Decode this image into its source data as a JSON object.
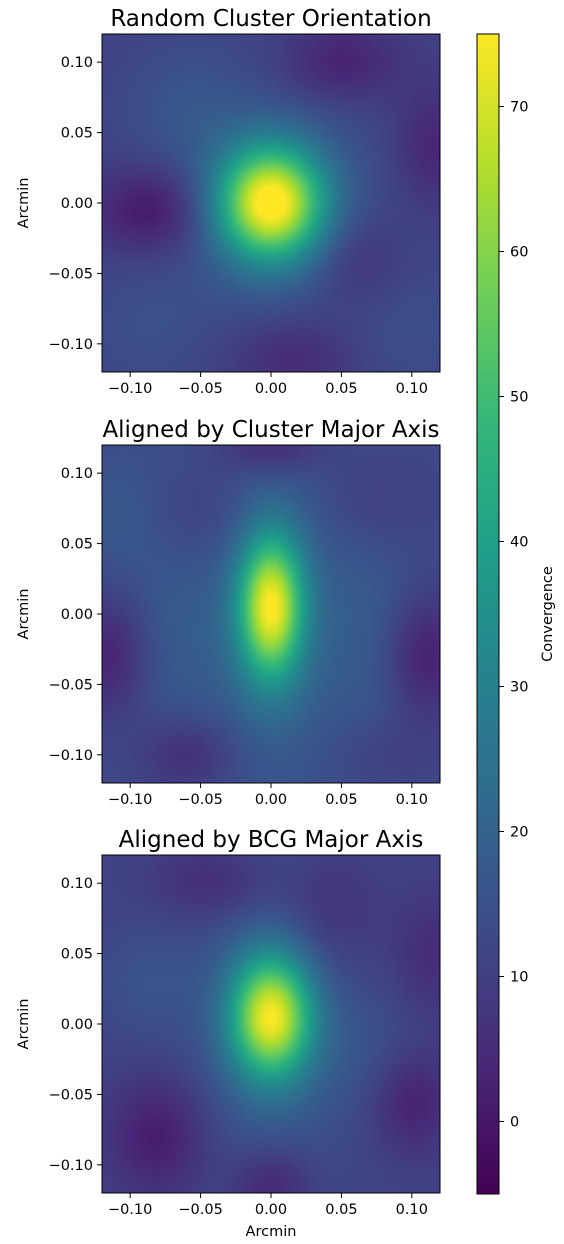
{
  "colormap": {
    "name": "viridis",
    "stops": [
      "#440154",
      "#482878",
      "#3e4989",
      "#31688e",
      "#26828e",
      "#1f9e89",
      "#35b779",
      "#6ece58",
      "#b5de2b",
      "#fde725"
    ]
  },
  "colorbar": {
    "label": "Convergence",
    "vmin": -5,
    "vmax": 75,
    "ticks": [
      0,
      10,
      20,
      30,
      40,
      50,
      60,
      70
    ]
  },
  "chart_data": [
    {
      "type": "heatmap",
      "title": "Random Cluster Orientation",
      "xlabel": "",
      "ylabel": "Arcmin",
      "xlim": [
        -0.12,
        0.12
      ],
      "ylim": [
        -0.12,
        0.12
      ],
      "xticks": [
        -0.1,
        -0.05,
        0.0,
        0.05,
        0.1
      ],
      "yticks": [
        -0.1,
        -0.05,
        0.0,
        0.05,
        0.1
      ],
      "background": 11,
      "blobs": [
        {
          "x": 0.0,
          "y": 0.0,
          "sx": 0.026,
          "sy": 0.028,
          "amp": 63
        },
        {
          "x": 0.0,
          "y": 0.0,
          "sx": 0.06,
          "sy": 0.06,
          "amp": 6
        },
        {
          "x": -0.085,
          "y": -0.005,
          "sx": 0.03,
          "sy": 0.022,
          "amp": -12
        },
        {
          "x": 0.05,
          "y": 0.1,
          "sx": 0.03,
          "sy": 0.02,
          "amp": -9
        },
        {
          "x": 0.015,
          "y": -0.11,
          "sx": 0.03,
          "sy": 0.02,
          "amp": -7
        },
        {
          "x": 0.115,
          "y": 0.04,
          "sx": 0.02,
          "sy": 0.03,
          "amp": -8
        },
        {
          "x": 0.06,
          "y": -0.04,
          "sx": 0.025,
          "sy": 0.025,
          "amp": -6
        },
        {
          "x": -0.06,
          "y": 0.07,
          "sx": 0.03,
          "sy": 0.03,
          "amp": 4
        },
        {
          "x": 0.1,
          "y": -0.09,
          "sx": 0.03,
          "sy": 0.03,
          "amp": 3
        },
        {
          "x": -0.09,
          "y": -0.09,
          "sx": 0.03,
          "sy": 0.03,
          "amp": 3
        }
      ]
    },
    {
      "type": "heatmap",
      "title": "Aligned by Cluster Major Axis",
      "xlabel": "",
      "ylabel": "Arcmin",
      "xlim": [
        -0.12,
        0.12
      ],
      "ylim": [
        -0.12,
        0.12
      ],
      "xticks": [
        -0.1,
        -0.05,
        0.0,
        0.05,
        0.1
      ],
      "yticks": [
        -0.1,
        -0.05,
        0.0,
        0.05,
        0.1
      ],
      "background": 13,
      "blobs": [
        {
          "x": 0.0,
          "y": 0.005,
          "sx": 0.016,
          "sy": 0.035,
          "amp": 55
        },
        {
          "x": 0.0,
          "y": 0.0,
          "sx": 0.035,
          "sy": 0.09,
          "amp": 8
        },
        {
          "x": -0.07,
          "y": 0.0,
          "sx": 0.025,
          "sy": 0.08,
          "amp": 4
        },
        {
          "x": 0.07,
          "y": 0.0,
          "sx": 0.025,
          "sy": 0.08,
          "amp": 4
        },
        {
          "x": -0.115,
          "y": -0.03,
          "sx": 0.02,
          "sy": 0.03,
          "amp": -10
        },
        {
          "x": 0.11,
          "y": -0.03,
          "sx": 0.02,
          "sy": 0.03,
          "amp": -11
        },
        {
          "x": 0.0,
          "y": 0.12,
          "sx": 0.025,
          "sy": 0.015,
          "amp": -10
        },
        {
          "x": -0.06,
          "y": -0.1,
          "sx": 0.025,
          "sy": 0.02,
          "amp": -9
        },
        {
          "x": -0.05,
          "y": 0.07,
          "sx": 0.03,
          "sy": 0.03,
          "amp": -5
        },
        {
          "x": 0.07,
          "y": 0.08,
          "sx": 0.03,
          "sy": 0.03,
          "amp": -5
        },
        {
          "x": 0.08,
          "y": -0.1,
          "sx": 0.03,
          "sy": 0.02,
          "amp": -4
        },
        {
          "x": -0.11,
          "y": 0.07,
          "sx": 0.02,
          "sy": 0.03,
          "amp": 4
        }
      ]
    },
    {
      "type": "heatmap",
      "title": "Aligned by BCG Major Axis",
      "xlabel": "Arcmin",
      "ylabel": "Arcmin",
      "xlim": [
        -0.12,
        0.12
      ],
      "ylim": [
        -0.12,
        0.12
      ],
      "xticks": [
        -0.1,
        -0.05,
        0.0,
        0.05,
        0.1
      ],
      "yticks": [
        -0.1,
        -0.05,
        0.0,
        0.05,
        0.1
      ],
      "background": 11,
      "blobs": [
        {
          "x": 0.0,
          "y": 0.005,
          "sx": 0.02,
          "sy": 0.03,
          "amp": 56
        },
        {
          "x": 0.0,
          "y": 0.0,
          "sx": 0.04,
          "sy": 0.08,
          "amp": 8
        },
        {
          "x": -0.08,
          "y": -0.08,
          "sx": 0.025,
          "sy": 0.03,
          "amp": -10
        },
        {
          "x": 0.1,
          "y": -0.055,
          "sx": 0.02,
          "sy": 0.025,
          "amp": -9
        },
        {
          "x": 0.0,
          "y": -0.115,
          "sx": 0.02,
          "sy": 0.02,
          "amp": -9
        },
        {
          "x": -0.04,
          "y": 0.1,
          "sx": 0.03,
          "sy": 0.02,
          "amp": -7
        },
        {
          "x": 0.04,
          "y": 0.08,
          "sx": 0.025,
          "sy": 0.03,
          "amp": -6
        },
        {
          "x": 0.115,
          "y": 0.05,
          "sx": 0.02,
          "sy": 0.03,
          "amp": -6
        },
        {
          "x": -0.09,
          "y": 0.03,
          "sx": 0.025,
          "sy": 0.03,
          "amp": 4
        },
        {
          "x": 0.07,
          "y": -0.02,
          "sx": 0.025,
          "sy": 0.03,
          "amp": 3
        }
      ]
    }
  ]
}
